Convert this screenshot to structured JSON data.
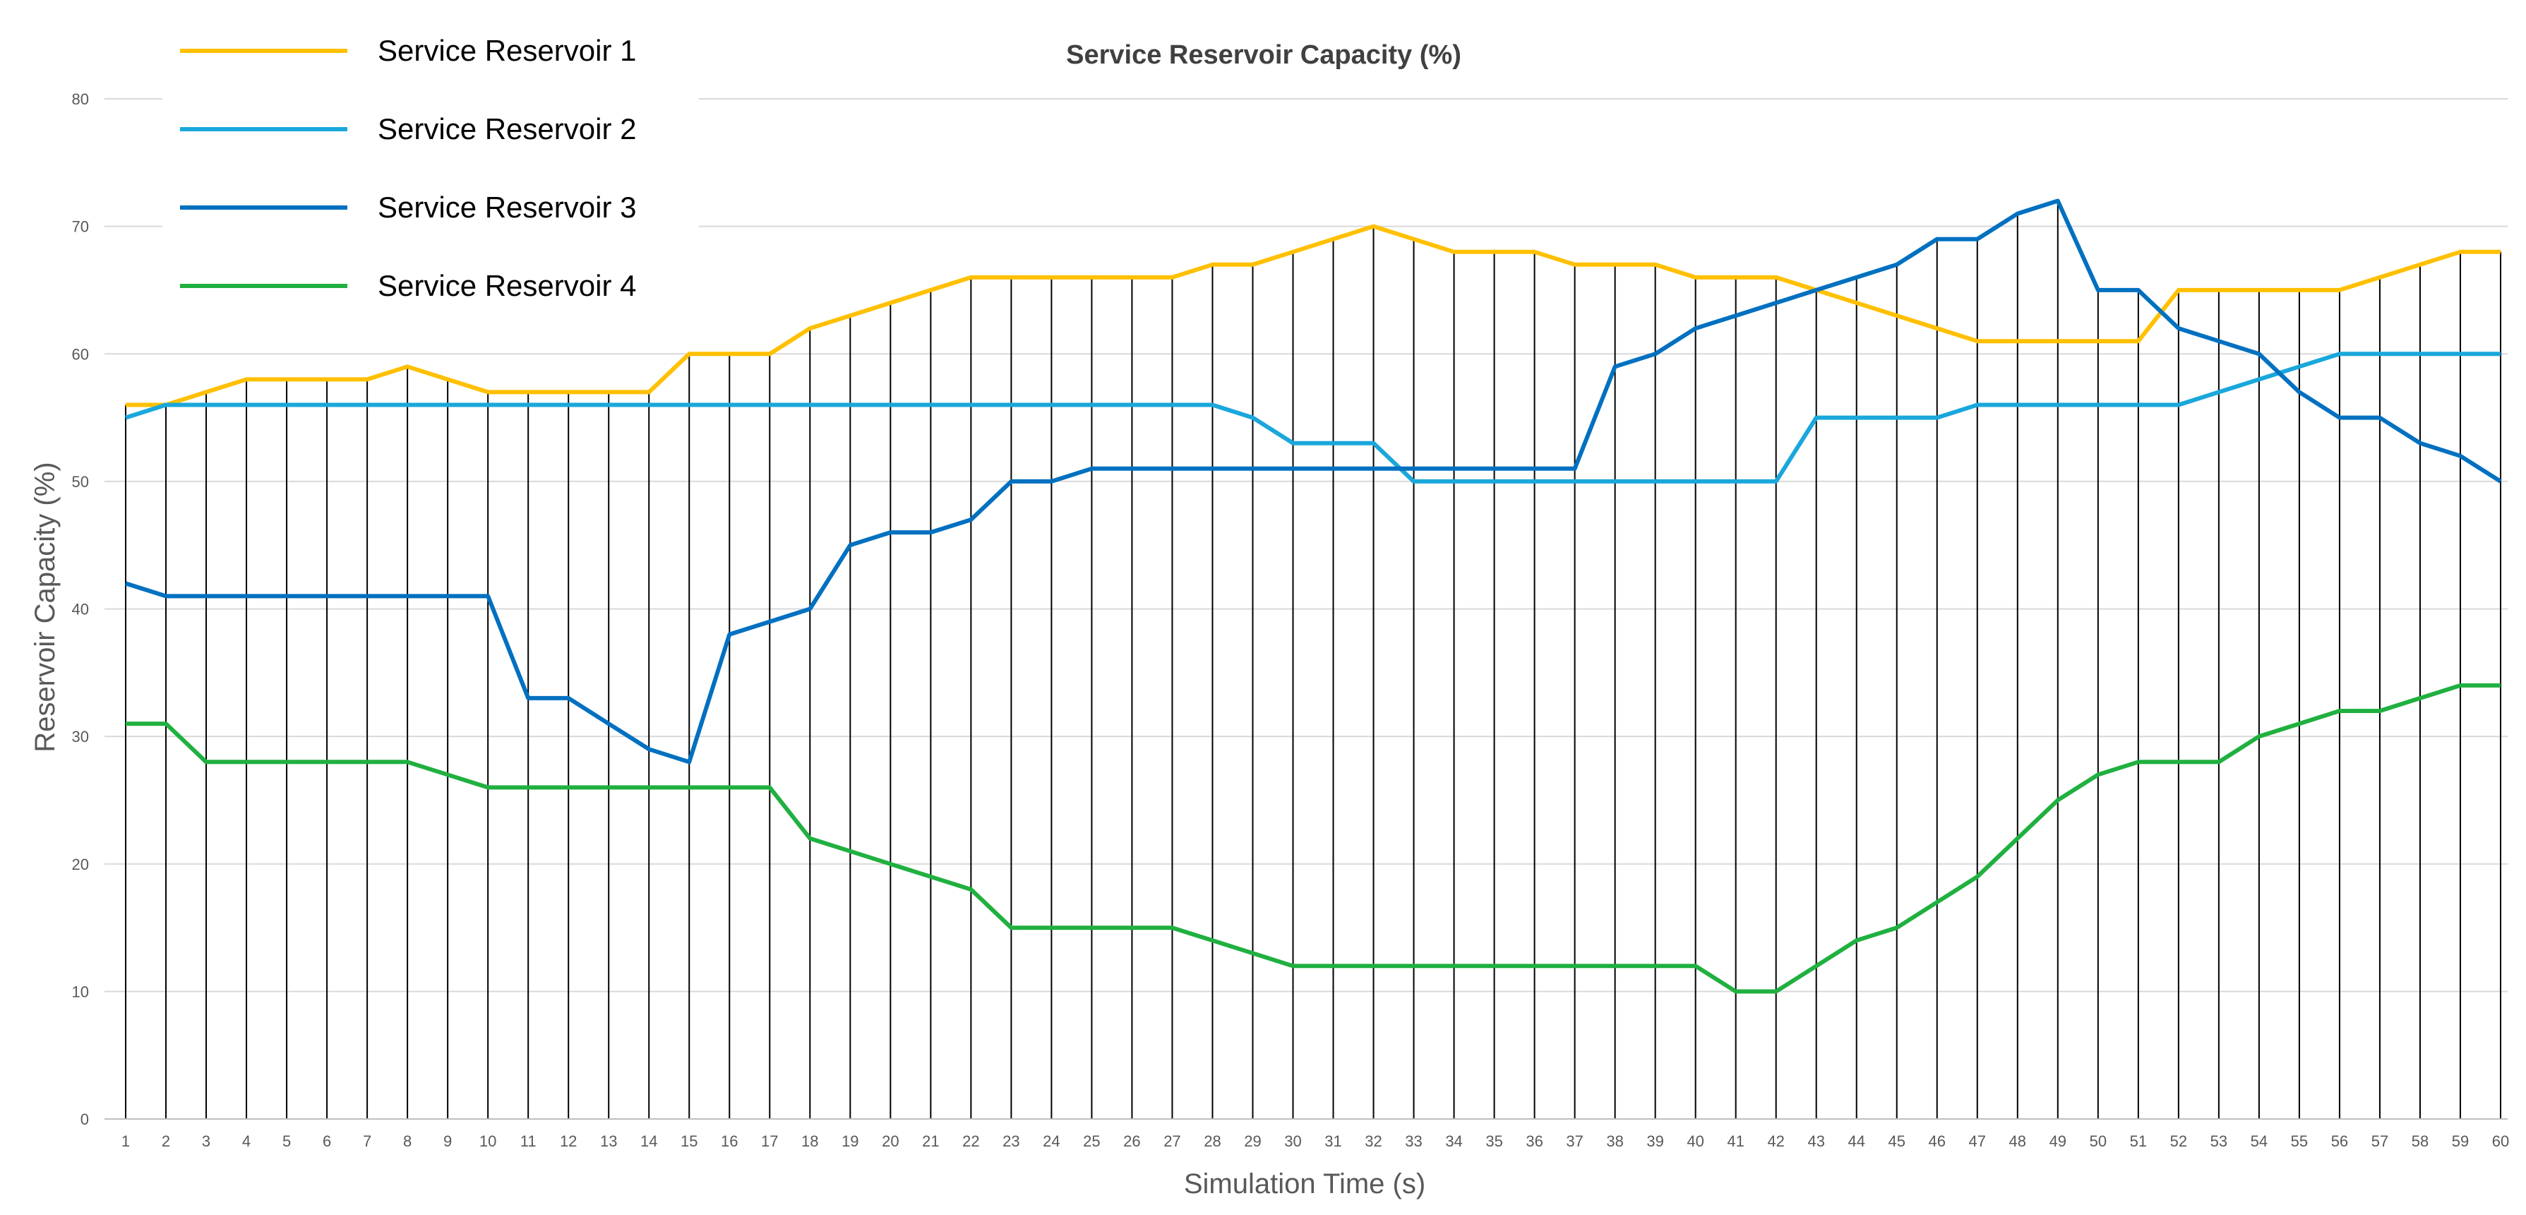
{
  "chart_data": {
    "type": "line",
    "title": "Service Reservoir Capacity (%)",
    "xlabel": "Simulation Time (s)",
    "ylabel": "Reservoir Capacity (%)",
    "ylim": [
      0,
      80
    ],
    "yticks": [
      0,
      10,
      20,
      30,
      40,
      50,
      60,
      70,
      80
    ],
    "x": [
      1,
      2,
      3,
      4,
      5,
      6,
      7,
      8,
      9,
      10,
      11,
      12,
      13,
      14,
      15,
      16,
      17,
      18,
      19,
      20,
      21,
      22,
      23,
      24,
      25,
      26,
      27,
      28,
      29,
      30,
      31,
      32,
      33,
      34,
      35,
      36,
      37,
      38,
      39,
      40,
      41,
      42,
      43,
      44,
      45,
      46,
      47,
      48,
      49,
      50,
      51,
      52,
      53,
      54,
      55,
      56,
      57,
      58,
      59,
      60
    ],
    "grid": {
      "horizontal": true,
      "vertical_drop_lines": true
    },
    "legend_position": "top-left",
    "series": [
      {
        "name": "Service Reservoir 1",
        "color": "#FFC000",
        "values": [
          56,
          56,
          57,
          58,
          58,
          58,
          58,
          59,
          58,
          57,
          57,
          57,
          57,
          57,
          60,
          60,
          60,
          62,
          63,
          64,
          65,
          66,
          66,
          66,
          66,
          66,
          66,
          67,
          67,
          68,
          69,
          70,
          69,
          68,
          68,
          68,
          67,
          67,
          67,
          66,
          66,
          66,
          65,
          64,
          63,
          62,
          61,
          61,
          61,
          61,
          61,
          65,
          65,
          65,
          65,
          65,
          66,
          67,
          68,
          68
        ]
      },
      {
        "name": "Service Reservoir 2",
        "color": "#1AA7DB",
        "values": [
          55,
          56,
          56,
          56,
          56,
          56,
          56,
          56,
          56,
          56,
          56,
          56,
          56,
          56,
          56,
          56,
          56,
          56,
          56,
          56,
          56,
          56,
          56,
          56,
          56,
          56,
          56,
          56,
          55,
          53,
          53,
          53,
          50,
          50,
          50,
          50,
          50,
          50,
          50,
          50,
          50,
          50,
          55,
          55,
          55,
          55,
          56,
          56,
          56,
          56,
          56,
          56,
          57,
          58,
          59,
          60,
          60,
          60,
          60,
          60
        ]
      },
      {
        "name": "Service Reservoir 3",
        "color": "#0070C0",
        "values": [
          42,
          41,
          41,
          41,
          41,
          41,
          41,
          41,
          41,
          41,
          33,
          33,
          31,
          29,
          28,
          38,
          39,
          40,
          45,
          46,
          46,
          47,
          50,
          50,
          51,
          51,
          51,
          51,
          51,
          51,
          51,
          51,
          51,
          51,
          51,
          51,
          51,
          59,
          60,
          62,
          63,
          64,
          65,
          66,
          67,
          69,
          69,
          71,
          72,
          65,
          65,
          62,
          61,
          60,
          57,
          55,
          55,
          53,
          52,
          50
        ]
      },
      {
        "name": "Service Reservoir 4",
        "color": "#20B040",
        "values": [
          31,
          31,
          28,
          28,
          28,
          28,
          28,
          28,
          27,
          26,
          26,
          26,
          26,
          26,
          26,
          26,
          26,
          22,
          21,
          20,
          19,
          18,
          15,
          15,
          15,
          15,
          15,
          14,
          13,
          12,
          12,
          12,
          12,
          12,
          12,
          12,
          12,
          12,
          12,
          12,
          10,
          10,
          12,
          14,
          15,
          17,
          19,
          22,
          25,
          27,
          28,
          28,
          28,
          30,
          31,
          32,
          32,
          33,
          34,
          34
        ]
      }
    ]
  }
}
